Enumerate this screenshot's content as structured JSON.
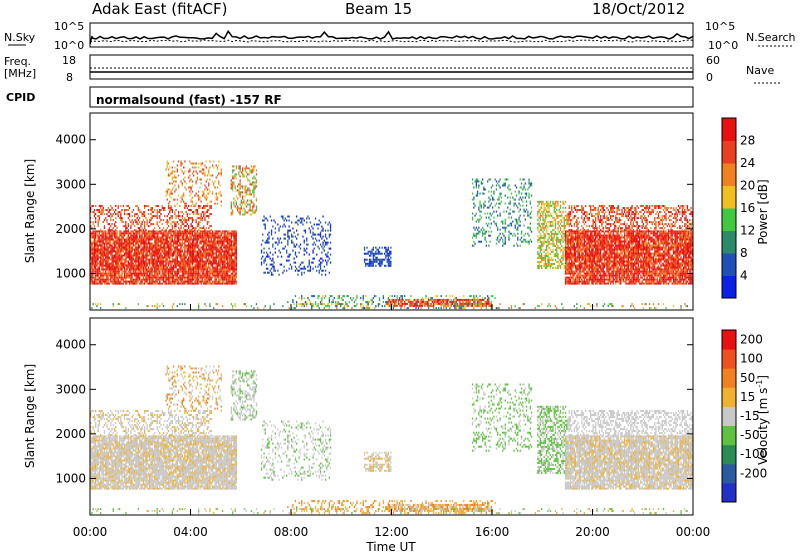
{
  "header": {
    "title": "Adak East (fitACF)",
    "beam": "Beam 15",
    "date": "18/Oct/2012"
  },
  "top_panels": {
    "nsky_label": "N.Sky",
    "nsky_ticks": [
      "10^5",
      "10^0"
    ],
    "nsearch_label": "N.Search",
    "nsearch_ticks": [
      "10^5",
      "10^0"
    ],
    "freq_label_1": "Freq.",
    "freq_label_2": "[MHz]",
    "freq_ticks": [
      "18",
      "8"
    ],
    "nave_label": "Nave",
    "nave_ticks": [
      "60",
      "0"
    ],
    "cpid_label": "CPID",
    "cpid_text": "normalsound (fast) -157 RF"
  },
  "colors": {
    "power": [
      "#0a1fe8",
      "#1f4fb8",
      "#2b8a6a",
      "#40c840",
      "#f0c020",
      "#f08020",
      "#e84020",
      "#e81010"
    ],
    "velocity": [
      "#e81010",
      "#f05020",
      "#f08020",
      "#f0b030",
      "#c8c8c8",
      "#60c040",
      "#2a8c50",
      "#2a5aa0",
      "#2030c8"
    ]
  },
  "chart_data": [
    {
      "type": "heatmap",
      "name": "power",
      "ylabel": "Slant Range [km]",
      "xlabel": "Time UT",
      "x_ticks": [
        "00:00",
        "04:00",
        "08:00",
        "12:00",
        "16:00",
        "20:00",
        "00:00"
      ],
      "y_ticks": [
        "1000",
        "2000",
        "3000",
        "4000"
      ],
      "xlim_hours": [
        0,
        24
      ],
      "ylim_km": [
        180,
        4600
      ],
      "colorbar_label": "Power [dB]",
      "colorbar_ticks": [
        "4",
        "8",
        "12",
        "16",
        "20",
        "24",
        "28"
      ],
      "grid": false
    },
    {
      "type": "heatmap",
      "name": "velocity",
      "ylabel": "Slant Range [km]",
      "xlabel": "Time UT",
      "x_ticks": [
        "00:00",
        "04:00",
        "08:00",
        "12:00",
        "16:00",
        "20:00",
        "00:00"
      ],
      "y_ticks": [
        "1000",
        "2000",
        "3000",
        "4000"
      ],
      "xlim_hours": [
        0,
        24
      ],
      "ylim_km": [
        180,
        4600
      ],
      "colorbar_label": "Velocity [m s",
      "colorbar_label_sup": "-1",
      "colorbar_label_close": "]",
      "colorbar_ticks": [
        "200",
        "100",
        "50",
        "15",
        "-15",
        "-50",
        "-100",
        "-200"
      ],
      "grid": false
    }
  ]
}
